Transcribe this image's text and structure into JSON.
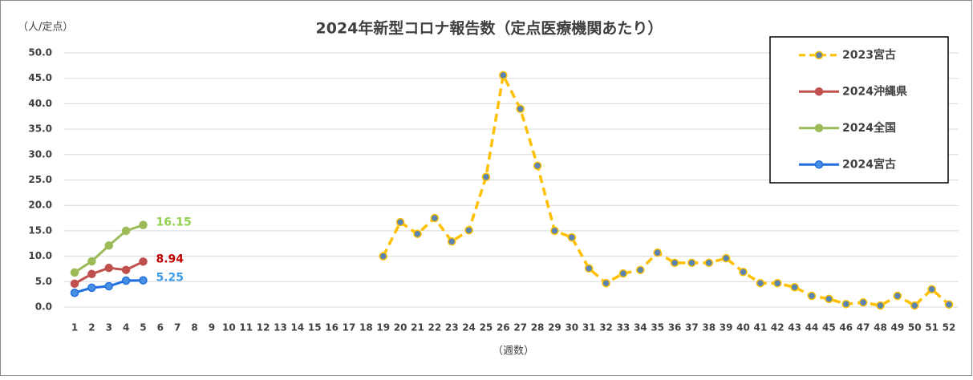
{
  "chart_data": {
    "type": "line",
    "title": "2024年新型コロナ報告数（定点医療機関あたり）",
    "y_unit": "（人/定点）",
    "x_label": "（週数）",
    "categories": [
      1,
      2,
      3,
      4,
      5,
      6,
      7,
      8,
      9,
      10,
      11,
      12,
      13,
      14,
      15,
      16,
      17,
      18,
      19,
      20,
      21,
      22,
      23,
      24,
      25,
      26,
      27,
      28,
      29,
      30,
      31,
      32,
      33,
      34,
      35,
      36,
      37,
      38,
      39,
      40,
      41,
      42,
      43,
      44,
      45,
      46,
      47,
      48,
      49,
      50,
      51,
      52
    ],
    "ylim": [
      0,
      50
    ],
    "yticks": [
      {
        "value": 0,
        "label": "0.0"
      },
      {
        "value": 5,
        "label": "5.0"
      },
      {
        "value": 10,
        "label": "10.0"
      },
      {
        "value": 15,
        "label": "15.0"
      },
      {
        "value": 20,
        "label": "20.0"
      },
      {
        "value": 25,
        "label": "25.0"
      },
      {
        "value": 30,
        "label": "30.0"
      },
      {
        "value": 35,
        "label": "35.0"
      },
      {
        "value": 40,
        "label": "40.0"
      },
      {
        "value": 45,
        "label": "45.0"
      },
      {
        "value": 50,
        "label": "50.0"
      }
    ],
    "grid": true,
    "legend": "upper right",
    "series": [
      {
        "name": "2023宮古",
        "color": "#ffc000",
        "marker_color": "#5b84b1",
        "dashed": true,
        "values": [
          null,
          null,
          null,
          null,
          null,
          null,
          null,
          null,
          null,
          null,
          null,
          null,
          null,
          null,
          null,
          null,
          null,
          null,
          10.0,
          16.7,
          14.4,
          17.5,
          12.9,
          15.1,
          25.6,
          45.6,
          39.0,
          27.8,
          15.0,
          13.7,
          7.6,
          4.7,
          6.6,
          7.3,
          10.7,
          8.7,
          8.7,
          8.7,
          9.6,
          6.9,
          4.7,
          4.7,
          3.9,
          2.2,
          1.6,
          0.6,
          0.9,
          0.3,
          2.2,
          0.3,
          3.5,
          0.5
        ]
      },
      {
        "name": "2024沖縄県",
        "color": "#c0504d",
        "marker_color": "#c0504d",
        "label_color": "#c00000",
        "label_last": true,
        "values": [
          4.6,
          6.5,
          7.7,
          7.3,
          8.94,
          null,
          null,
          null,
          null,
          null,
          null,
          null,
          null,
          null,
          null,
          null,
          null,
          null,
          null,
          null,
          null,
          null,
          null,
          null,
          null,
          null,
          null,
          null,
          null,
          null,
          null,
          null,
          null,
          null,
          null,
          null,
          null,
          null,
          null,
          null,
          null,
          null,
          null,
          null,
          null,
          null,
          null,
          null,
          null,
          null,
          null,
          null
        ]
      },
      {
        "name": "2024全国",
        "color": "#9bbb59",
        "marker_color": "#9bbb59",
        "label_color": "#92d050",
        "label_last": true,
        "values": [
          6.8,
          9.0,
          12.1,
          15.0,
          16.15,
          null,
          null,
          null,
          null,
          null,
          null,
          null,
          null,
          null,
          null,
          null,
          null,
          null,
          null,
          null,
          null,
          null,
          null,
          null,
          null,
          null,
          null,
          null,
          null,
          null,
          null,
          null,
          null,
          null,
          null,
          null,
          null,
          null,
          null,
          null,
          null,
          null,
          null,
          null,
          null,
          null,
          null,
          null,
          null,
          null,
          null,
          null
        ]
      },
      {
        "name": "2024宮古",
        "color": "#1f6fe0",
        "marker_color": "#4a90e2",
        "label_color": "#3d9be9",
        "label_last": true,
        "values": [
          2.8,
          3.8,
          4.1,
          5.2,
          5.25,
          null,
          null,
          null,
          null,
          null,
          null,
          null,
          null,
          null,
          null,
          null,
          null,
          null,
          null,
          null,
          null,
          null,
          null,
          null,
          null,
          null,
          null,
          null,
          null,
          null,
          null,
          null,
          null,
          null,
          null,
          null,
          null,
          null,
          null,
          null,
          null,
          null,
          null,
          null,
          null,
          null,
          null,
          null,
          null,
          null,
          null,
          null
        ]
      }
    ]
  }
}
